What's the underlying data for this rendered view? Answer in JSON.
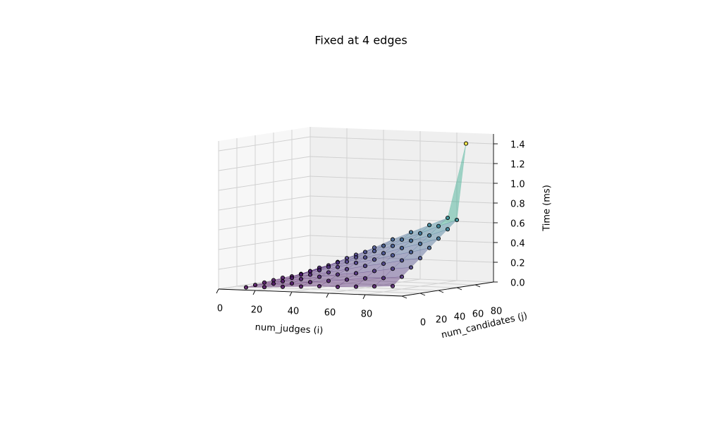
{
  "chart_data": {
    "type": "surface3d",
    "title": "Fixed at 4 edges",
    "xlabel": "num_judges (i)",
    "ylabel": "num_candidates (j)",
    "zlabel": "Time (ms)",
    "x": [
      10,
      20,
      30,
      40,
      50,
      60,
      70,
      80,
      90
    ],
    "y": [
      10,
      20,
      30,
      40,
      50,
      60,
      70,
      80,
      90
    ],
    "z": [
      [
        0.01,
        0.02,
        0.03,
        0.04,
        0.05,
        0.05,
        0.06,
        0.07,
        0.08
      ],
      [
        0.02,
        0.04,
        0.05,
        0.07,
        0.09,
        0.11,
        0.13,
        0.14,
        0.16
      ],
      [
        0.03,
        0.05,
        0.08,
        0.11,
        0.14,
        0.16,
        0.19,
        0.22,
        0.24
      ],
      [
        0.04,
        0.07,
        0.11,
        0.14,
        0.18,
        0.22,
        0.25,
        0.29,
        0.32
      ],
      [
        0.05,
        0.09,
        0.14,
        0.18,
        0.23,
        0.27,
        0.32,
        0.36,
        0.41
      ],
      [
        0.05,
        0.11,
        0.16,
        0.22,
        0.27,
        0.32,
        0.38,
        0.43,
        0.49
      ],
      [
        0.06,
        0.13,
        0.19,
        0.25,
        0.32,
        0.38,
        0.44,
        0.5,
        0.57
      ],
      [
        0.07,
        0.14,
        0.22,
        0.29,
        0.36,
        0.43,
        0.5,
        0.58,
        0.65
      ],
      [
        0.08,
        0.16,
        0.24,
        0.32,
        0.41,
        0.49,
        0.57,
        0.65,
        1.41
      ]
    ],
    "xlim": [
      0,
      100
    ],
    "ylim": [
      0,
      100
    ],
    "zlim": [
      0,
      1.5
    ],
    "xticks": [
      0,
      20,
      40,
      60,
      80
    ],
    "yticks": [
      0,
      20,
      40,
      60,
      80
    ],
    "zticks": [
      {
        "value": 0,
        "label": "0.0"
      },
      0.2,
      0.4,
      0.6,
      0.8,
      {
        "value": 1,
        "label": "1.0"
      },
      1.2,
      1.4
    ],
    "colormap": "viridis",
    "grid": true
  }
}
